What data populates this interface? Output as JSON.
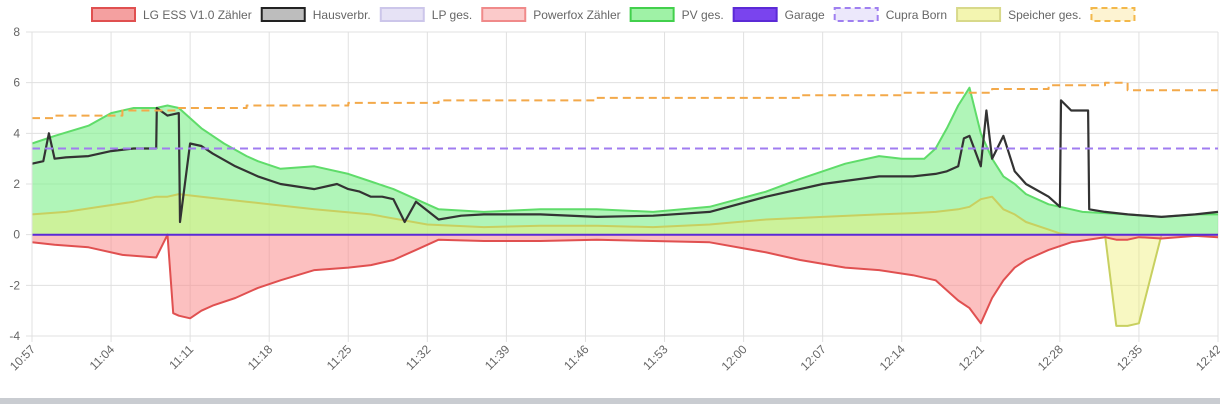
{
  "chart_data": {
    "type": "line",
    "title": "",
    "xlabel": "",
    "ylabel": "",
    "ylim": [
      -4,
      8
    ],
    "yticks": [
      -4,
      -2,
      0,
      2,
      4,
      6,
      8
    ],
    "x_ticks": [
      "10:57",
      "11:04",
      "11:11",
      "11:18",
      "11:25",
      "11:32",
      "11:39",
      "11:46",
      "11:53",
      "12:00",
      "12:07",
      "12:14",
      "12:21",
      "12:28",
      "12:35",
      "12:42"
    ],
    "x_range_minutes": [
      0,
      105
    ],
    "grid": true,
    "legend_position": "top",
    "legend": [
      {
        "name": "LG ESS V1.0 Zähler",
        "fill": "#f4a0a0",
        "stroke": "#e05050",
        "dashed": false
      },
      {
        "name": "Hausverbr.",
        "fill": "#bdbdbd",
        "stroke": "#222222",
        "dashed": false
      },
      {
        "name": "LP ges.",
        "fill": "#e6e2f5",
        "stroke": "#ccc6ea",
        "dashed": false
      },
      {
        "name": "Powerfox Zähler",
        "fill": "#fbcaca",
        "stroke": "#f08a8a",
        "dashed": false
      },
      {
        "name": "PV ges.",
        "fill": "#9ff2a6",
        "stroke": "#42d04c",
        "dashed": false
      },
      {
        "name": "Garage",
        "fill": "#7a44ee",
        "stroke": "#5b2ad6",
        "dashed": false
      },
      {
        "name": "Cupra Born",
        "fill": "#ece8fb",
        "stroke": "#9f7ff0",
        "dashed": true
      },
      {
        "name": "Speicher ges.",
        "fill": "#f3f5b0",
        "stroke": "#d8d98a",
        "dashed": false
      },
      {
        "name": "",
        "fill": "#fdf3d2",
        "stroke": "#f3b84a",
        "dashed": true
      }
    ],
    "series": [
      {
        "name": "PV ges.",
        "fill": "rgba(134,239,146,0.65)",
        "stroke": "#5fdc6a",
        "x": [
          0,
          2,
          5,
          7,
          9,
          10,
          11,
          12,
          13,
          15,
          17,
          19,
          20,
          22,
          25,
          28,
          30,
          32,
          34,
          36,
          40,
          45,
          50,
          55,
          60,
          65,
          68,
          72,
          75,
          77,
          79,
          80,
          81,
          82,
          83,
          84,
          85,
          86,
          87,
          88,
          90,
          92,
          93,
          95,
          97,
          100,
          103,
          105
        ],
        "y": [
          3.6,
          3.9,
          4.3,
          4.8,
          5.0,
          5.0,
          5.0,
          5.1,
          5.0,
          4.2,
          3.6,
          3.1,
          2.9,
          2.6,
          2.7,
          2.4,
          2.1,
          1.8,
          1.4,
          1.0,
          0.9,
          1.0,
          1.0,
          0.9,
          1.1,
          1.7,
          2.2,
          2.8,
          3.1,
          3.0,
          3.0,
          3.4,
          4.2,
          5.1,
          5.8,
          4.0,
          3.0,
          2.3,
          2.0,
          1.6,
          1.2,
          1.0,
          0.9,
          0.85,
          0.8,
          0.7,
          0.8,
          0.8
        ]
      },
      {
        "name": "Speicher ges.",
        "fill": "rgba(240,240,120,0.45)",
        "stroke": "#c8d060",
        "x": [
          0,
          3,
          6,
          9,
          11,
          12,
          13,
          15,
          17,
          19,
          21,
          23,
          25,
          30,
          35,
          40,
          45,
          50,
          55,
          60,
          65,
          70,
          75,
          78,
          80,
          82,
          83,
          84,
          85,
          86,
          87,
          88,
          90,
          91,
          92,
          94,
          95,
          96,
          97,
          98,
          100,
          102,
          105
        ],
        "y": [
          0.8,
          0.9,
          1.1,
          1.3,
          1.5,
          1.5,
          1.6,
          1.5,
          1.4,
          1.3,
          1.2,
          1.1,
          1.0,
          0.8,
          0.4,
          0.3,
          0.35,
          0.35,
          0.3,
          0.4,
          0.6,
          0.7,
          0.8,
          0.85,
          0.9,
          1.0,
          1.1,
          1.4,
          1.5,
          1.0,
          0.8,
          0.5,
          0.2,
          0.05,
          0,
          0,
          0,
          -3.6,
          -3.6,
          -3.5,
          0,
          0,
          0
        ]
      },
      {
        "name": "LG ESS V1.0 Zähler",
        "fill": "rgba(250,140,140,0.55)",
        "stroke": "#e05050",
        "x": [
          0,
          2,
          5,
          8,
          11,
          12,
          12.5,
          13,
          14,
          15,
          16,
          18,
          20,
          22,
          25,
          28,
          30,
          32,
          34,
          36,
          40,
          45,
          50,
          55,
          60,
          65,
          68,
          72,
          75,
          78,
          80,
          81,
          82,
          83,
          84,
          85,
          86,
          87,
          88,
          90,
          92,
          95,
          96,
          97,
          98,
          100,
          103,
          105
        ],
        "y": [
          -0.3,
          -0.4,
          -0.5,
          -0.8,
          -0.9,
          0,
          -3.1,
          -3.2,
          -3.3,
          -3.0,
          -2.8,
          -2.5,
          -2.1,
          -1.8,
          -1.4,
          -1.3,
          -1.2,
          -1.0,
          -0.6,
          -0.2,
          -0.25,
          -0.25,
          -0.2,
          -0.25,
          -0.3,
          -0.7,
          -1.0,
          -1.3,
          -1.4,
          -1.6,
          -1.8,
          -2.2,
          -2.6,
          -2.9,
          -3.5,
          -2.5,
          -1.8,
          -1.3,
          -1.0,
          -0.6,
          -0.3,
          -0.1,
          -0.2,
          -0.2,
          -0.1,
          -0.15,
          -0.05,
          -0.1
        ]
      },
      {
        "name": "Hausverbr.",
        "fill": "none",
        "stroke": "#333333",
        "x": [
          0,
          1,
          1.5,
          2,
          3,
          5,
          7,
          9,
          11,
          11.05,
          12,
          13,
          13.1,
          14,
          15,
          16,
          18,
          20,
          22,
          25,
          27,
          28,
          29,
          30,
          31,
          32,
          33,
          34,
          36,
          38,
          40,
          45,
          50,
          55,
          60,
          65,
          70,
          75,
          78,
          80,
          81,
          82,
          82.5,
          83,
          84,
          84.5,
          85,
          86,
          87,
          88,
          90,
          91,
          91.1,
          92,
          93.5,
          93.6,
          95,
          97,
          100,
          103,
          105
        ],
        "y": [
          2.8,
          2.9,
          4.0,
          3.0,
          3.05,
          3.1,
          3.3,
          3.4,
          3.4,
          5.0,
          4.7,
          4.8,
          0.5,
          3.6,
          3.5,
          3.2,
          2.7,
          2.3,
          2.0,
          1.8,
          2.0,
          1.8,
          1.7,
          1.5,
          1.5,
          1.4,
          0.5,
          1.3,
          0.6,
          0.75,
          0.8,
          0.8,
          0.7,
          0.75,
          0.9,
          1.5,
          2.0,
          2.3,
          2.3,
          2.4,
          2.5,
          2.7,
          3.8,
          3.9,
          2.7,
          4.9,
          3.0,
          3.9,
          2.5,
          2.0,
          1.5,
          1.1,
          5.3,
          4.9,
          4.9,
          1.0,
          0.9,
          0.8,
          0.7,
          0.8,
          0.9
        ]
      },
      {
        "name": "Cupra Born",
        "fill": "none",
        "stroke": "#a07cf0",
        "dashed": true,
        "x": [
          0,
          105
        ],
        "y": [
          3.4,
          3.4
        ]
      },
      {
        "name": "",
        "fill": "none",
        "stroke": "#f3a94a",
        "dashed": true,
        "step": true,
        "x": [
          0,
          2,
          8,
          13,
          19,
          28,
          36,
          50,
          68,
          77,
          85,
          90,
          95,
          97,
          105
        ],
        "y": [
          4.6,
          4.7,
          4.9,
          5.0,
          5.1,
          5.2,
          5.3,
          5.4,
          5.5,
          5.6,
          5.75,
          5.9,
          6.0,
          5.7,
          5.7
        ]
      },
      {
        "name": "Garage",
        "fill": "none",
        "stroke": "#5b2ad6",
        "x": [
          0,
          105
        ],
        "y": [
          0,
          0
        ]
      }
    ]
  }
}
